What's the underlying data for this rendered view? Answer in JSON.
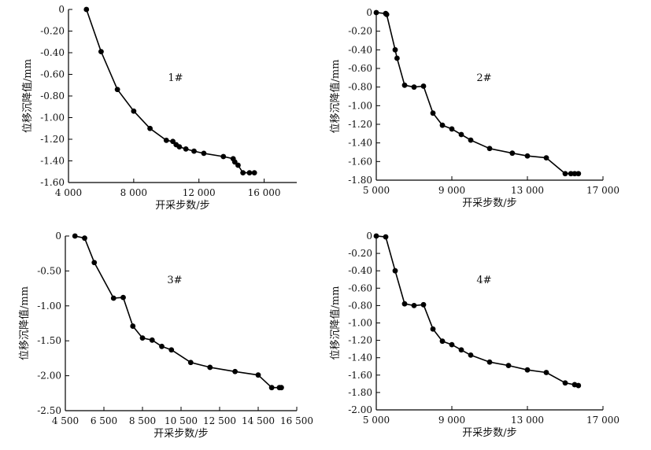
{
  "chart_data": [
    {
      "type": "line",
      "panel": "1#",
      "xlabel": "开采步数/步",
      "ylabel": "位移沉降值/mm",
      "xlim": [
        4000,
        18000
      ],
      "ylim": [
        -1.6,
        0
      ],
      "x_ticks": [
        4000,
        8000,
        12000,
        16000
      ],
      "x_tick_labels": [
        "4 000",
        "8 000",
        "12 000",
        "16 000"
      ],
      "y_ticks": [
        0,
        -0.2,
        -0.4,
        -0.6,
        -0.8,
        -1.0,
        -1.2,
        -1.4,
        -1.6
      ],
      "y_tick_labels": [
        "0",
        "-0.20",
        "-0.40",
        "-0.60",
        "-0.80",
        "-1.00",
        "-1.20",
        "-1.40",
        "-1.60"
      ],
      "series": [
        {
          "name": "1#",
          "x": [
            5100,
            6000,
            7000,
            8000,
            9000,
            10000,
            10400,
            10600,
            10800,
            11200,
            11700,
            12300,
            13500,
            14100,
            14200,
            14400,
            14700,
            15100,
            15400
          ],
          "y": [
            0,
            -0.39,
            -0.74,
            -0.94,
            -1.1,
            -1.21,
            -1.22,
            -1.25,
            -1.27,
            -1.29,
            -1.31,
            -1.33,
            -1.36,
            -1.38,
            -1.41,
            -1.44,
            -1.51,
            -1.51,
            -1.51
          ]
        }
      ]
    },
    {
      "type": "line",
      "panel": "2#",
      "xlabel": "开采步数/步",
      "ylabel": "位移沉降值/mm",
      "xlim": [
        5000,
        17000
      ],
      "ylim": [
        -1.8,
        0
      ],
      "x_ticks": [
        5000,
        9000,
        13000,
        17000
      ],
      "x_tick_labels": [
        "5 000",
        "9 000",
        "13 000",
        "17 000"
      ],
      "y_ticks": [
        0,
        -0.2,
        -0.4,
        -0.6,
        -0.8,
        -1.0,
        -1.2,
        -1.4,
        -1.6,
        -1.8
      ],
      "y_tick_labels": [
        "0",
        "-0.20",
        "-0.40",
        "-0.60",
        "-0.80",
        "-1.00",
        "-1.20",
        "-1.40",
        "-1.60",
        "-1.80"
      ],
      "series": [
        {
          "name": "2#",
          "x": [
            5000,
            5500,
            5550,
            6000,
            6100,
            6500,
            7000,
            7500,
            8000,
            8500,
            9000,
            9500,
            10000,
            11000,
            12200,
            13000,
            14000,
            15000,
            15300,
            15500,
            15700
          ],
          "y": [
            0,
            -0.01,
            -0.02,
            -0.4,
            -0.49,
            -0.78,
            -0.8,
            -0.79,
            -1.08,
            -1.21,
            -1.25,
            -1.31,
            -1.37,
            -1.46,
            -1.51,
            -1.54,
            -1.56,
            -1.73,
            -1.73,
            -1.73,
            -1.73
          ]
        }
      ]
    },
    {
      "type": "line",
      "panel": "3#",
      "xlabel": "开采步数/步",
      "ylabel": "位移沉降值/mm",
      "xlim": [
        4500,
        16500
      ],
      "ylim": [
        -2.5,
        0
      ],
      "x_ticks": [
        4500,
        6500,
        8500,
        10500,
        12500,
        14500,
        16500
      ],
      "x_tick_labels": [
        "4 500",
        "6 500",
        "8 500",
        "10 500",
        "12 500",
        "14 500",
        "16 500"
      ],
      "y_ticks": [
        0,
        -0.5,
        -1.0,
        -1.5,
        -2.0,
        -2.5
      ],
      "y_tick_labels": [
        "0",
        "-0.50",
        "-1.00",
        "-1.50",
        "-2.00",
        "-2.50"
      ],
      "series": [
        {
          "name": "3#",
          "x": [
            5000,
            5500,
            6000,
            7000,
            7500,
            8000,
            8500,
            9000,
            9500,
            10000,
            11000,
            12000,
            13300,
            14500,
            15200,
            15600,
            15700
          ],
          "y": [
            0,
            -0.03,
            -0.38,
            -0.89,
            -0.88,
            -1.29,
            -1.46,
            -1.49,
            -1.58,
            -1.63,
            -1.81,
            -1.88,
            -1.94,
            -1.99,
            -2.17,
            -2.17,
            -2.17
          ]
        }
      ]
    },
    {
      "type": "line",
      "panel": "4#",
      "xlabel": "开采步数/步",
      "ylabel": "位移沉降值/mm",
      "xlim": [
        5000,
        17000
      ],
      "ylim": [
        -2.0,
        0
      ],
      "x_ticks": [
        5000,
        9000,
        13000,
        17000
      ],
      "x_tick_labels": [
        "5 000",
        "9 000",
        "13 000",
        "17 000"
      ],
      "y_ticks": [
        0,
        -0.2,
        -0.4,
        -0.6,
        -0.8,
        -1.0,
        -1.2,
        -1.4,
        -1.6,
        -1.8,
        -2.0
      ],
      "y_tick_labels": [
        "0",
        "-0.20",
        "-0.40",
        "-0.60",
        "-0.80",
        "-1.00",
        "-1.20",
        "-1.40",
        "-1.60",
        "-1.80",
        "-2.00"
      ],
      "series": [
        {
          "name": "4#",
          "x": [
            5000,
            5500,
            6000,
            6500,
            7000,
            7500,
            8000,
            8500,
            9000,
            9500,
            10000,
            11000,
            12000,
            13000,
            14000,
            15000,
            15500,
            15700
          ],
          "y": [
            0,
            -0.01,
            -0.4,
            -0.78,
            -0.8,
            -0.79,
            -1.07,
            -1.21,
            -1.25,
            -1.31,
            -1.37,
            -1.45,
            -1.49,
            -1.54,
            -1.57,
            -1.69,
            -1.71,
            -1.72
          ]
        }
      ]
    }
  ]
}
